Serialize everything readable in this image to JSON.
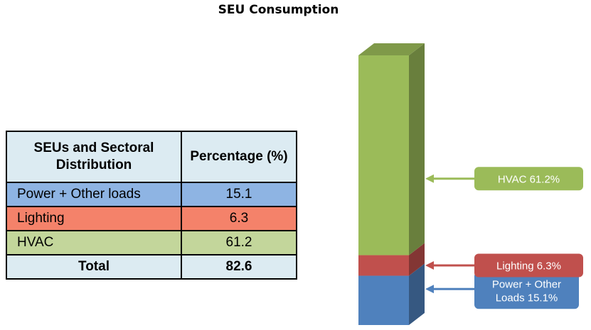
{
  "chart_data": [
    {
      "type": "table",
      "columns": [
        "SEUs and Sectoral Distribution",
        "Percentage (%)"
      ],
      "rows": [
        {
          "category": "Power + Other loads",
          "value": "15.1",
          "color": "#8eb4e3"
        },
        {
          "category": "Lighting",
          "value": "6.3",
          "color": "#f4826a"
        },
        {
          "category": "HVAC",
          "value": "61.2",
          "color": "#c3d69b"
        }
      ],
      "total": {
        "label": "Total",
        "value": "82.6"
      }
    },
    {
      "type": "bar",
      "title": "SEU Consumption",
      "stacked": true,
      "series": [
        {
          "category": "Power + Other loads",
          "value": 15.1,
          "label_lines": [
            "Power + Other",
            "Loads 15.1%"
          ],
          "color": "#4f81bd"
        },
        {
          "category": "Lighting",
          "value": 6.3,
          "label_lines": [
            "Lighting 6.3%"
          ],
          "color": "#c0504d"
        },
        {
          "category": "HVAC",
          "value": 61.2,
          "label_lines": [
            "HVAC 61.2%"
          ],
          "color": "#9bbb59"
        }
      ]
    }
  ]
}
